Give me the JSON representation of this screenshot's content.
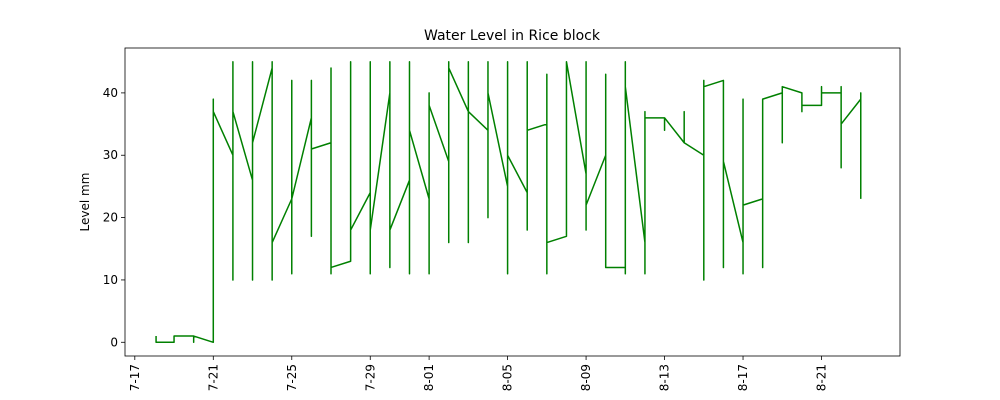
{
  "chart_data": {
    "type": "line",
    "title": "Water Level in Rice block",
    "xlabel": "",
    "ylabel": "Level mm",
    "x_tick_labels": [
      "7-17",
      "7-21",
      "7-25",
      "7-29",
      "8-01",
      "8-05",
      "8-09",
      "8-13",
      "8-17",
      "8-21"
    ],
    "x_tick_values": [
      "2021-07-17",
      "2021-07-21",
      "2021-07-25",
      "2021-07-29",
      "2021-08-01",
      "2021-08-05",
      "2021-08-09",
      "2021-08-13",
      "2021-08-17",
      "2021-08-21"
    ],
    "y_ticks": [
      0,
      10,
      20,
      30,
      40
    ],
    "xlim": [
      "2021-07-16 12:00",
      "2021-08-25 00:00"
    ],
    "ylim": [
      -2.2,
      47.2
    ],
    "grid": false,
    "legend": "none",
    "line_color": "#008000",
    "series": [
      {
        "points": [
          [
            "2021-07-18 02:00",
            1
          ],
          [
            "2021-07-18 02:00",
            0
          ],
          [
            "2021-07-19 00:00",
            0
          ],
          [
            "2021-07-19 00:00",
            1
          ],
          [
            "2021-07-20 00:00",
            1
          ],
          [
            "2021-07-20 00:00",
            0
          ],
          [
            "2021-07-20 00:00",
            1
          ],
          [
            "2021-07-21 00:00",
            0
          ],
          [
            "2021-07-21 00:00",
            39
          ],
          [
            "2021-07-21 00:00",
            37
          ],
          [
            "2021-07-22 00:00",
            30
          ],
          [
            "2021-07-22 00:00",
            45
          ],
          [
            "2021-07-22 00:00",
            10
          ],
          [
            "2021-07-22 00:00",
            37
          ],
          [
            "2021-07-23 00:00",
            26
          ],
          [
            "2021-07-23 00:00",
            45
          ],
          [
            "2021-07-23 00:00",
            10
          ],
          [
            "2021-07-23 00:00",
            32
          ],
          [
            "2021-07-24 00:00",
            44
          ],
          [
            "2021-07-24 00:00",
            45
          ],
          [
            "2021-07-24 00:00",
            10
          ],
          [
            "2021-07-24 00:00",
            16
          ],
          [
            "2021-07-25 00:00",
            23
          ],
          [
            "2021-07-25 00:00",
            42
          ],
          [
            "2021-07-25 00:00",
            11
          ],
          [
            "2021-07-25 00:00",
            23
          ],
          [
            "2021-07-26 00:00",
            36
          ],
          [
            "2021-07-26 00:00",
            42
          ],
          [
            "2021-07-26 00:00",
            17
          ],
          [
            "2021-07-26 00:00",
            31
          ],
          [
            "2021-07-27 00:00",
            32
          ],
          [
            "2021-07-27 00:00",
            44
          ],
          [
            "2021-07-27 00:00",
            11
          ],
          [
            "2021-07-27 00:00",
            12
          ],
          [
            "2021-07-28 00:00",
            13
          ],
          [
            "2021-07-28 00:00",
            45
          ],
          [
            "2021-07-28 00:00",
            18
          ],
          [
            "2021-07-29 00:00",
            24
          ],
          [
            "2021-07-29 00:00",
            45
          ],
          [
            "2021-07-29 00:00",
            11
          ],
          [
            "2021-07-29 00:00",
            18
          ],
          [
            "2021-07-30 00:00",
            40
          ],
          [
            "2021-07-30 00:00",
            45
          ],
          [
            "2021-07-30 00:00",
            12
          ],
          [
            "2021-07-30 00:00",
            18
          ],
          [
            "2021-07-31 00:00",
            26
          ],
          [
            "2021-07-31 00:00",
            45
          ],
          [
            "2021-07-31 00:00",
            11
          ],
          [
            "2021-07-31 00:00",
            34
          ],
          [
            "2021-08-01 00:00",
            23
          ],
          [
            "2021-08-01 00:00",
            40
          ],
          [
            "2021-08-01 00:00",
            11
          ],
          [
            "2021-08-01 00:00",
            38
          ],
          [
            "2021-08-02 00:00",
            29
          ],
          [
            "2021-08-02 00:00",
            45
          ],
          [
            "2021-08-02 00:00",
            16
          ],
          [
            "2021-08-02 00:00",
            44
          ],
          [
            "2021-08-03 00:00",
            37
          ],
          [
            "2021-08-03 00:00",
            45
          ],
          [
            "2021-08-03 00:00",
            16
          ],
          [
            "2021-08-03 00:00",
            37
          ],
          [
            "2021-08-04 00:00",
            34
          ],
          [
            "2021-08-04 00:00",
            45
          ],
          [
            "2021-08-04 00:00",
            20
          ],
          [
            "2021-08-04 00:00",
            40
          ],
          [
            "2021-08-05 00:00",
            25
          ],
          [
            "2021-08-05 00:00",
            45
          ],
          [
            "2021-08-05 00:00",
            11
          ],
          [
            "2021-08-05 00:00",
            30
          ],
          [
            "2021-08-06 00:00",
            24
          ],
          [
            "2021-08-06 00:00",
            45
          ],
          [
            "2021-08-06 00:00",
            18
          ],
          [
            "2021-08-06 00:00",
            34
          ],
          [
            "2021-08-07 00:00",
            35
          ],
          [
            "2021-08-07 00:00",
            43
          ],
          [
            "2021-08-07 00:00",
            11
          ],
          [
            "2021-08-07 00:00",
            16
          ],
          [
            "2021-08-08 00:00",
            17
          ],
          [
            "2021-08-08 00:00",
            45
          ],
          [
            "2021-08-09 00:00",
            27
          ],
          [
            "2021-08-09 00:00",
            45
          ],
          [
            "2021-08-09 00:00",
            18
          ],
          [
            "2021-08-09 00:00",
            22
          ],
          [
            "2021-08-10 00:00",
            30
          ],
          [
            "2021-08-10 00:00",
            43
          ],
          [
            "2021-08-10 00:00",
            12
          ],
          [
            "2021-08-11 00:00",
            12
          ],
          [
            "2021-08-11 00:00",
            45
          ],
          [
            "2021-08-11 00:00",
            11
          ],
          [
            "2021-08-11 00:00",
            41
          ],
          [
            "2021-08-12 00:00",
            16
          ],
          [
            "2021-08-12 00:00",
            37
          ],
          [
            "2021-08-12 00:00",
            11
          ],
          [
            "2021-08-12 00:00",
            36
          ],
          [
            "2021-08-13 00:00",
            36
          ],
          [
            "2021-08-13 00:00",
            34
          ],
          [
            "2021-08-13 00:00",
            36
          ],
          [
            "2021-08-14 00:00",
            32
          ],
          [
            "2021-08-14 00:00",
            37
          ],
          [
            "2021-08-14 00:00",
            32
          ],
          [
            "2021-08-15 00:00",
            30
          ],
          [
            "2021-08-15 00:00",
            42
          ],
          [
            "2021-08-15 00:00",
            10
          ],
          [
            "2021-08-15 00:00",
            41
          ],
          [
            "2021-08-16 00:00",
            42
          ],
          [
            "2021-08-16 00:00",
            12
          ],
          [
            "2021-08-16 00:00",
            29
          ],
          [
            "2021-08-17 00:00",
            16
          ],
          [
            "2021-08-17 00:00",
            39
          ],
          [
            "2021-08-17 00:00",
            11
          ],
          [
            "2021-08-17 00:00",
            22
          ],
          [
            "2021-08-18 00:00",
            23
          ],
          [
            "2021-08-18 00:00",
            12
          ],
          [
            "2021-08-18 00:00",
            39
          ],
          [
            "2021-08-19 00:00",
            40
          ],
          [
            "2021-08-19 00:00",
            32
          ],
          [
            "2021-08-19 00:00",
            41
          ],
          [
            "2021-08-20 00:00",
            40
          ],
          [
            "2021-08-20 00:00",
            37
          ],
          [
            "2021-08-20 00:00",
            38
          ],
          [
            "2021-08-21 00:00",
            38
          ],
          [
            "2021-08-21 00:00",
            41
          ],
          [
            "2021-08-21 00:00",
            39
          ],
          [
            "2021-08-21 00:00",
            40
          ],
          [
            "2021-08-22 00:00",
            40
          ],
          [
            "2021-08-22 00:00",
            41
          ],
          [
            "2021-08-22 00:00",
            28
          ],
          [
            "2021-08-22 00:00",
            35
          ],
          [
            "2021-08-23 00:00",
            39
          ],
          [
            "2021-08-23 00:00",
            40
          ],
          [
            "2021-08-23 00:00",
            23
          ]
        ]
      }
    ]
  }
}
